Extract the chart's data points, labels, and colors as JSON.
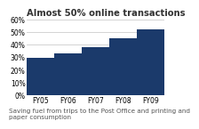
{
  "categories": [
    "FY05",
    "FY06",
    "FY07",
    "FY08",
    "FY09"
  ],
  "values": [
    30,
    33,
    38,
    45,
    52
  ],
  "bar_color": "#1b3a6b",
  "title": "Almost 50% online transactions",
  "title_fontsize": 7.2,
  "ylim": [
    0,
    60
  ],
  "yticks": [
    0,
    10,
    20,
    30,
    40,
    50,
    60
  ],
  "caption": "Saving fuel from trips to the Post Office and printing and\npaper consumption",
  "caption_fontsize": 5.2,
  "tick_fontsize": 5.5,
  "background_color": "#ffffff",
  "bar_width": 1.0,
  "grid_color": "#cccccc",
  "title_color": "#333333",
  "caption_color": "#555555"
}
